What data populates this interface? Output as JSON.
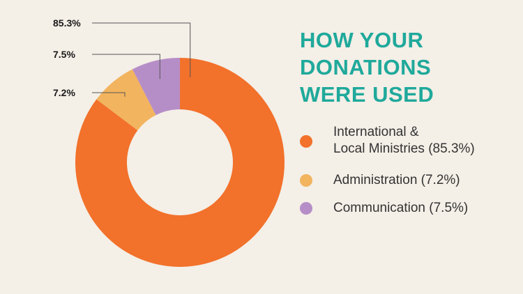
{
  "title": {
    "lines": [
      "HOW YOUR",
      "DONATIONS",
      "WERE USED"
    ]
  },
  "legend": {
    "items": [
      {
        "lines": [
          "International &",
          "Local Ministries (85.3%)"
        ],
        "color": "#f2712b"
      },
      {
        "lines": [
          "Administration (7.2%)"
        ],
        "color": "#f2b45e"
      },
      {
        "lines": [
          "Communication (7.5%)"
        ],
        "color": "#b68ec7"
      }
    ]
  },
  "chart_data": {
    "type": "pie",
    "donut": true,
    "categories": [
      "International & Local Ministries",
      "Administration",
      "Communication"
    ],
    "values": [
      85.3,
      7.2,
      7.5
    ],
    "data_labels": [
      "85.3%",
      "7.2%",
      "7.5%"
    ],
    "colors": [
      "#f2712b",
      "#f2b45e",
      "#b68ec7"
    ],
    "start": "12 o'clock, clockwise",
    "legend_placement": "right",
    "title": "HOW YOUR DONATIONS WERE USED"
  }
}
